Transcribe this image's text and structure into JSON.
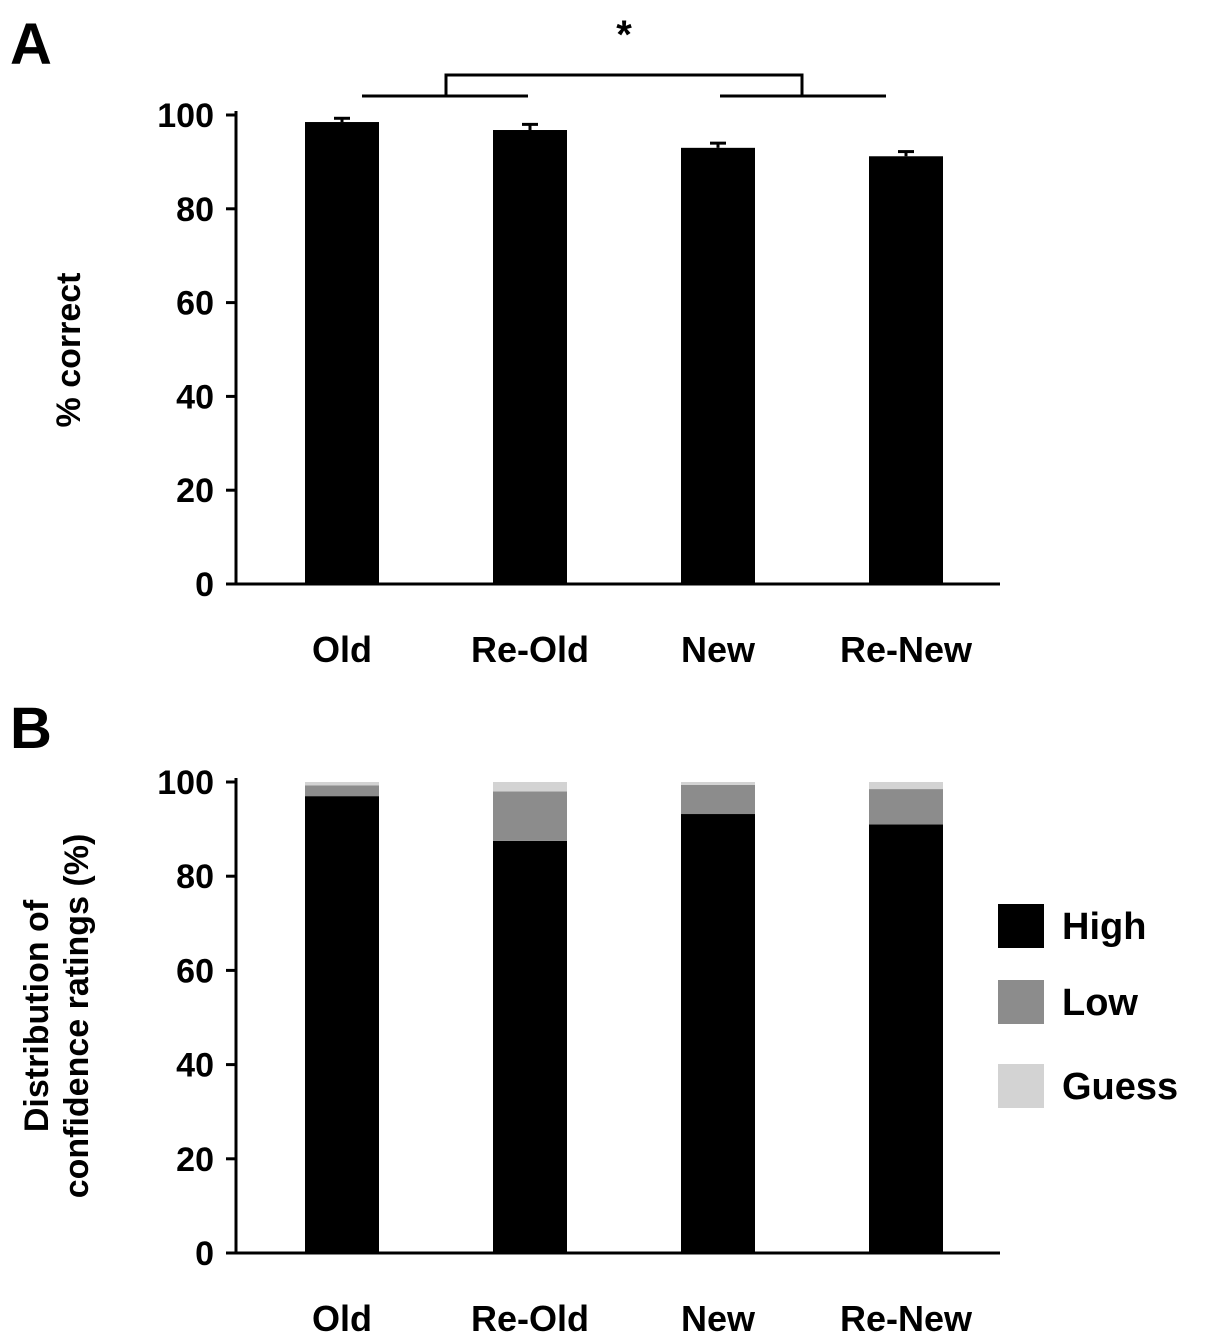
{
  "panels": {
    "a_label": "A",
    "b_label": "B"
  },
  "colors": {
    "high": "#000000",
    "low": "#8c8c8c",
    "guess": "#d3d3d3",
    "axis": "#000000"
  },
  "chart_data": [
    {
      "type": "bar",
      "panel": "A",
      "categories": [
        "Old",
        "Re-Old",
        "New",
        "Re-New"
      ],
      "values": [
        98.5,
        96.8,
        93.0,
        91.2
      ],
      "errors": [
        0.8,
        1.2,
        1.0,
        1.0
      ],
      "ylabel": "% correct",
      "xlabel": "",
      "ylim": [
        0,
        100
      ],
      "yticks": [
        0,
        20,
        40,
        60,
        80,
        100
      ],
      "annotation": "*",
      "grid": false
    },
    {
      "type": "bar",
      "stacked": true,
      "panel": "B",
      "categories": [
        "Old",
        "Re-Old",
        "New",
        "Re-New"
      ],
      "series": [
        {
          "name": "High",
          "values": [
            97.0,
            87.5,
            93.2,
            91.0
          ]
        },
        {
          "name": "Low",
          "values": [
            2.3,
            10.5,
            6.2,
            7.5
          ]
        },
        {
          "name": "Guess",
          "values": [
            0.7,
            2.0,
            0.6,
            1.5
          ]
        }
      ],
      "ylabel_lines": [
        "Distribution of",
        "confidence ratings (%)"
      ],
      "xlabel": "",
      "ylim": [
        0,
        100
      ],
      "yticks": [
        0,
        20,
        40,
        60,
        80,
        100
      ],
      "legend": [
        "High",
        "Low",
        "Guess"
      ],
      "legend_position": "right",
      "grid": false
    }
  ]
}
